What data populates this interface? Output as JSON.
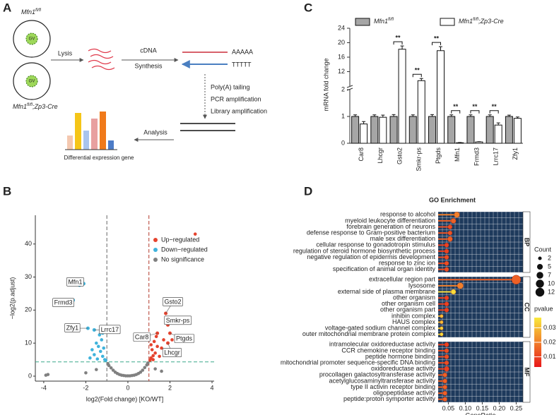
{
  "panel_labels": [
    "A",
    "B",
    "C",
    "D"
  ],
  "diagram": {
    "cell_top": "Mfn1fl/fl",
    "cell_bottom": "Mfn1fl/fl;Zp3-Cre",
    "nucleus": "GV",
    "lysis": "Lysis",
    "synthesis": [
      "cDNA",
      "Synthesis"
    ],
    "poly_a": "AAAAA",
    "poly_t": "TTTTT",
    "steps": [
      "Poly(A) tailing",
      "PCR amplification",
      "Library amplification"
    ],
    "analysis": "Analysis",
    "result": "Differential expression gene"
  },
  "chart_data": [
    {
      "type": "scatter",
      "xlabel": "log2(Fold change) [KO/WT]",
      "ylabel": "−log2(p.adjust)",
      "xlim": [
        -4.4,
        4.1
      ],
      "xticks": [
        -4,
        -2,
        0,
        2,
        4
      ],
      "ylim": [
        -1.5,
        48.7
      ],
      "yticks": [
        0,
        10,
        20,
        30,
        40
      ],
      "legend": "upper right",
      "thresholds": {
        "x": [
          -1,
          1
        ],
        "y": 4.32
      },
      "series": [
        {
          "name": "Up−regulated",
          "color": "#e5432e",
          "x": [
            1.05,
            1.1,
            1.2,
            1.3,
            1.15,
            1.4,
            1.5,
            1.25,
            1.6,
            1.7,
            1.8,
            1.35,
            1.1,
            2.1,
            1.2,
            3.2
          ],
          "y": [
            4.8,
            5.5,
            6.2,
            7,
            8,
            9,
            6,
            10.5,
            8.5,
            11,
            7,
            12,
            9.5,
            11,
            5,
            43
          ]
        },
        {
          "name": "Down−regulated",
          "color": "#3fb3dc",
          "x": [
            -1.1,
            -1.2,
            -1.3,
            -1.15,
            -1.4,
            -1.5,
            -1.25,
            -1.6,
            -1.8,
            -1.35,
            -1.05,
            -1.7,
            -1.2,
            -1.45,
            -2.3
          ],
          "y": [
            5,
            6,
            7.5,
            8.5,
            9,
            10,
            11,
            6.5,
            5.5,
            12.5,
            4.8,
            8,
            13,
            5.2,
            27.5
          ]
        },
        {
          "name": "No significance",
          "color": "#808080",
          "x": [
            -0.9,
            -0.8,
            -0.7,
            -0.6,
            -0.5,
            -0.4,
            -0.3,
            -0.2,
            -0.1,
            0,
            0.1,
            0.2,
            0.3,
            0.4,
            0.5,
            0.6,
            0.7,
            0.8,
            0.9,
            -1.5,
            -2.0,
            1.3,
            1.6,
            -0.95,
            0.95,
            -3.8,
            -3.9
          ],
          "y": [
            3.2,
            2.5,
            1.8,
            1.2,
            0.8,
            0.5,
            0.3,
            0.2,
            0.1,
            0.1,
            0.1,
            0.2,
            0.3,
            0.5,
            0.8,
            1.2,
            1.8,
            2.6,
            3.4,
            2.0,
            1.0,
            2.2,
            1.5,
            3.8,
            4.0,
            0.5,
            0.3
          ]
        }
      ],
      "annotations": [
        {
          "label": "Mfn1",
          "x": -2.1,
          "y": 28
        },
        {
          "label": "Frmd3",
          "x": -2.6,
          "y": 23
        },
        {
          "label": "Zfy1",
          "x": -1.9,
          "y": 14.5
        },
        {
          "label": "Lrrc17",
          "x": -1.6,
          "y": 14
        },
        {
          "label": "Gsto2",
          "x": 1.8,
          "y": 19
        },
        {
          "label": "Smkr-ps",
          "x": 1.9,
          "y": 15.5
        },
        {
          "label": "Ptgds",
          "x": 2.0,
          "y": 13
        },
        {
          "label": "Car8",
          "x": 1.4,
          "y": 13
        },
        {
          "label": "Lhcgr",
          "x": 1.9,
          "y": 10
        }
      ]
    },
    {
      "type": "bar",
      "ylabel": "mRNA fold change",
      "categories": [
        "Car8",
        "Lhcgr",
        "Gsto2",
        "Smkr-ps",
        "Ptgds",
        "Mfn1",
        "Frmd3",
        "Lrrc17",
        "Zfy1"
      ],
      "ylim": [
        0,
        24
      ],
      "ybreak": [
        2,
        8
      ],
      "yticks": [
        0,
        1,
        2,
        12,
        16,
        20,
        24
      ],
      "series": [
        {
          "name": "Mfn1fl/fl",
          "color": "#a6a6a6",
          "values": [
            1,
            1,
            1,
            1,
            1,
            1,
            1,
            1,
            1
          ],
          "errors": [
            0.06,
            0.06,
            0.07,
            0.06,
            0.07,
            0.06,
            0.06,
            0.06,
            0.05
          ]
        },
        {
          "name": "Mfn1fl/fl;Zp3-Cre",
          "color": "#ffffff",
          "values": [
            0.72,
            0.97,
            18.2,
            9.5,
            17.8,
            0.02,
            0.05,
            0.68,
            0.93
          ],
          "errors": [
            0.09,
            0.08,
            0.9,
            0.6,
            1.1,
            0.01,
            0.01,
            0.08,
            0.05
          ]
        }
      ],
      "significance": [
        null,
        null,
        "**",
        "**",
        "**",
        "**",
        "**",
        "**",
        null
      ]
    },
    {
      "type": "dotplot",
      "title": "GO Enrichment",
      "xlabel": "GeneRatio",
      "xlim": [
        0.02,
        0.27
      ],
      "xticks": [
        0.05,
        {
          "value": 0.1,
          "label": "0.10"
        },
        0.15,
        {
          "value": 0.2,
          "label": "0.20"
        },
        0.25
      ],
      "facets": [
        {
          "name": "BP",
          "terms": [
            "response to alcohol",
            "myeloid leukocyte differentiation",
            "forebrain generation of neurons",
            "defense response to Gram-positive bacterium",
            "male sex differentiation",
            "cellular response to gonadotropin stimulus",
            "regulation of steroid hormone biosynthetic process",
            "negative regulation of epidermis development",
            "response to zinc ion",
            "specification of animal organ identity"
          ],
          "gene_ratio": [
            0.075,
            0.065,
            0.055,
            0.055,
            0.055,
            0.045,
            0.045,
            0.045,
            0.045,
            0.045
          ],
          "count": [
            5,
            4,
            3,
            3,
            4,
            3,
            3,
            3,
            3,
            3
          ],
          "pvalue": [
            0.02,
            0.015,
            0.012,
            0.013,
            0.015,
            0.01,
            0.01,
            0.012,
            0.012,
            0.012
          ]
        },
        {
          "name": "CC",
          "terms": [
            "extracellular region part",
            "lysosome",
            "external side of plasma membrane",
            "other organism",
            "other organism cell",
            "other organism part",
            "inhibin complex",
            "HAUS complex",
            "voltage-gated sodium channel complex",
            "outer mitochondrial membrane protein complex"
          ],
          "gene_ratio": [
            0.25,
            0.085,
            0.065,
            0.045,
            0.045,
            0.045,
            0.03,
            0.03,
            0.03,
            0.03
          ],
          "count": [
            13,
            6,
            4,
            3,
            3,
            3,
            2,
            2,
            2,
            2
          ],
          "pvalue": [
            0.015,
            0.02,
            0.035,
            0.01,
            0.01,
            0.01,
            0.03,
            0.03,
            0.033,
            0.035
          ]
        },
        {
          "name": "MF",
          "terms": [
            "intramolecular oxidoreductase activity",
            "CCR chemokine receptor binding",
            "peptide hormone binding",
            "mitochondrial promoter sequence-specific DNA binding",
            "oxidoreductase activity",
            "procollagen galactosyltransferase activity",
            "acetylglucosaminyltransferase activity",
            "type II activin receptor binding",
            "oligopeptidase activity",
            "peptide:proton symporter activity"
          ],
          "gene_ratio": [
            0.045,
            0.045,
            0.045,
            0.045,
            0.045,
            0.04,
            0.04,
            0.04,
            0.04,
            0.04
          ],
          "count": [
            3,
            3,
            3,
            3,
            4,
            3,
            3,
            3,
            3,
            3
          ],
          "pvalue": [
            0.01,
            0.012,
            0.012,
            0.012,
            0.01,
            0.015,
            0.015,
            0.015,
            0.015,
            0.015
          ]
        }
      ],
      "size_legend": {
        "title": "Count",
        "values": [
          2,
          5,
          7,
          10,
          12
        ]
      },
      "color_legend": {
        "title": "pvalue",
        "lim": [
          0.003,
          0.037
        ],
        "ticks": [
          0.01,
          0.02,
          0.03
        ],
        "colors": [
          "#e8171a",
          "#f9e83c"
        ]
      }
    }
  ]
}
